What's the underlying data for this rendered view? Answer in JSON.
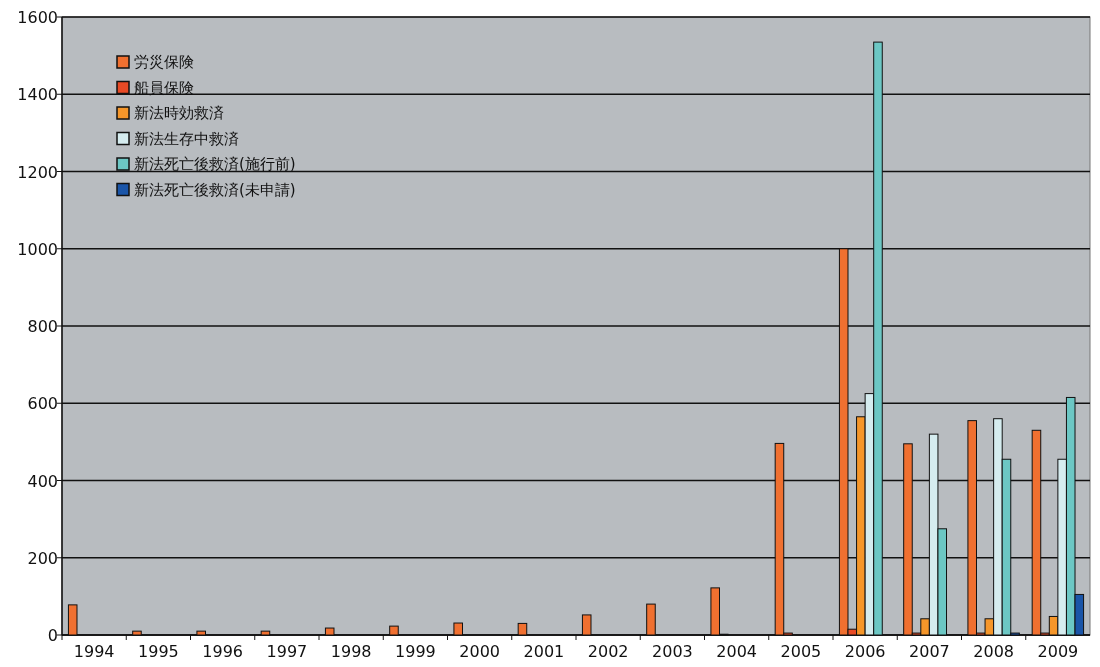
{
  "chart_data": {
    "type": "bar",
    "categories": [
      "1994",
      "1995",
      "1996",
      "1997",
      "1998",
      "1999",
      "2000",
      "2001",
      "2002",
      "2003",
      "2004",
      "2005",
      "2006",
      "2007",
      "2008",
      "2009"
    ],
    "series": [
      {
        "name": "労災保険",
        "color": "#f07030",
        "values": [
          78,
          10,
          10,
          10,
          18,
          23,
          31,
          30,
          52,
          80,
          122,
          496,
          1000,
          495,
          555,
          530
        ]
      },
      {
        "name": "船員保険",
        "color": "#e84a25",
        "values": [
          null,
          null,
          null,
          null,
          null,
          null,
          null,
          null,
          null,
          null,
          2,
          5,
          15,
          5,
          5,
          5
        ]
      },
      {
        "name": "新法時効救済",
        "color": "#f5962a",
        "values": [
          null,
          null,
          null,
          null,
          null,
          null,
          null,
          null,
          null,
          null,
          null,
          null,
          565,
          42,
          42,
          48
        ]
      },
      {
        "name": "新法生存中救済",
        "color": "#d5ecef",
        "values": [
          null,
          null,
          null,
          null,
          null,
          null,
          null,
          null,
          null,
          null,
          null,
          null,
          625,
          520,
          560,
          455
        ]
      },
      {
        "name": "新法死亡後救済(施行前)",
        "color": "#6cc7c4",
        "values": [
          null,
          null,
          null,
          null,
          null,
          null,
          null,
          null,
          null,
          null,
          null,
          null,
          1535,
          275,
          455,
          615
        ]
      },
      {
        "name": "新法死亡後救済(未申請)",
        "color": "#1a55a8",
        "values": [
          null,
          null,
          null,
          null,
          null,
          null,
          null,
          null,
          null,
          null,
          null,
          null,
          null,
          0,
          5,
          105
        ]
      }
    ],
    "ylim": [
      0,
      1600
    ],
    "yticks": [
      0,
      200,
      400,
      600,
      800,
      1000,
      1200,
      1400,
      1600
    ],
    "grid": "y",
    "legend": "top left"
  }
}
